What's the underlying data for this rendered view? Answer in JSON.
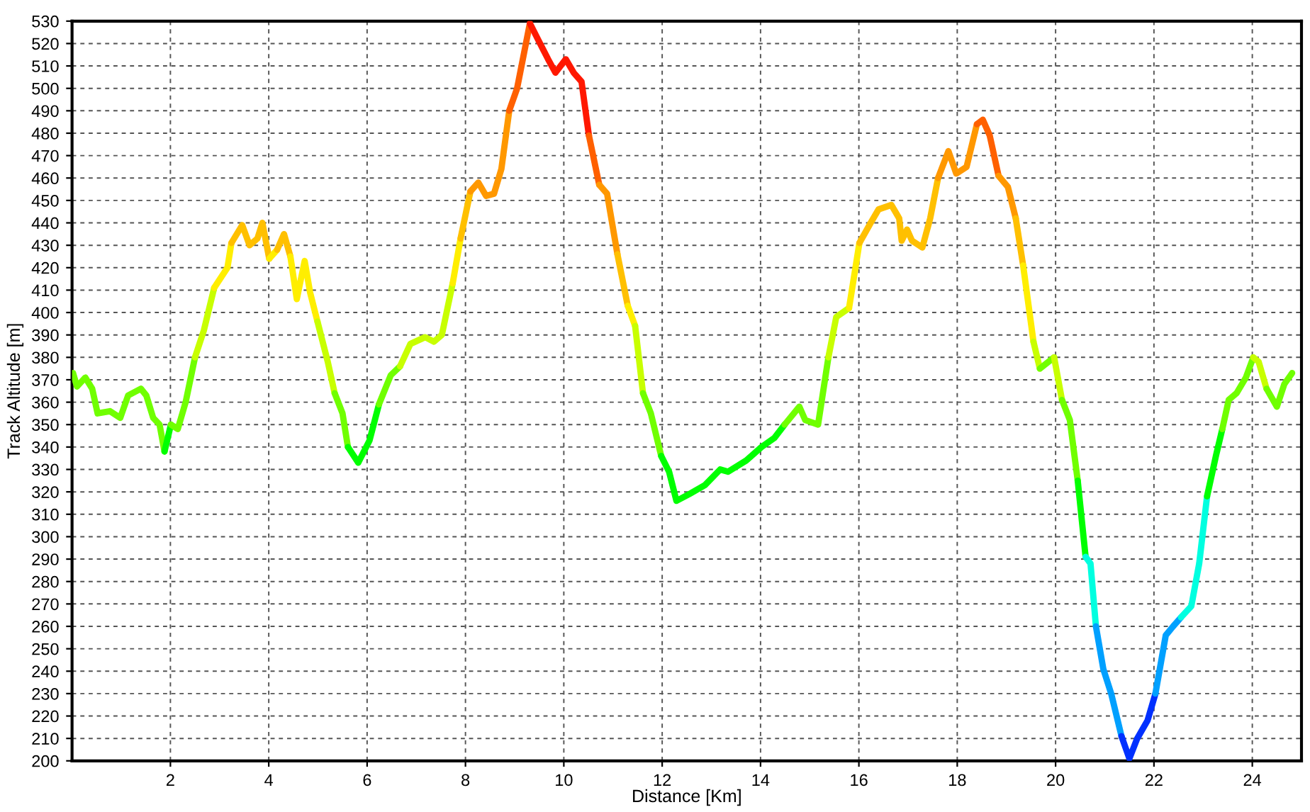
{
  "chart_data": {
    "type": "line",
    "xlabel": "Distance [Km]",
    "ylabel": "Track Altitude [m]",
    "xlim": [
      0,
      25
    ],
    "ylim": [
      200,
      530
    ],
    "xticks": [
      2,
      4,
      6,
      8,
      10,
      12,
      14,
      16,
      18,
      20,
      22,
      24
    ],
    "yticks": [
      200,
      210,
      220,
      230,
      240,
      250,
      260,
      270,
      280,
      290,
      300,
      310,
      320,
      330,
      340,
      350,
      360,
      370,
      380,
      390,
      400,
      410,
      420,
      430,
      440,
      450,
      460,
      470,
      480,
      490,
      500,
      510,
      520,
      530
    ],
    "grid": true,
    "line_style": "solid",
    "marker": "none",
    "series": [
      {
        "color": "#70ff00",
        "x": [
          0.02,
          0.1,
          0.27,
          0.41,
          0.52,
          0.77,
          0.98,
          1.14,
          1.4,
          1.51,
          1.65,
          1.78,
          1.88
        ],
        "values": [
          373,
          367,
          371,
          366,
          355,
          356,
          353,
          363,
          366,
          363,
          353,
          350,
          338
        ]
      },
      {
        "color": "#00ff00",
        "x": [
          1.88,
          2.01
        ],
        "values": [
          338,
          350
        ]
      },
      {
        "color": "#70ff00",
        "x": [
          2.01,
          2.15,
          2.31,
          2.5
        ],
        "values": [
          350,
          348,
          360,
          380
        ]
      },
      {
        "color": "#c8ff00",
        "x": [
          2.5,
          2.68,
          2.89
        ],
        "values": [
          380,
          392,
          411
        ]
      },
      {
        "color": "#ffee00",
        "x": [
          2.89,
          3.16,
          3.24
        ],
        "values": [
          411,
          420,
          431
        ]
      },
      {
        "color": "#ffc000",
        "x": [
          3.24,
          3.46,
          3.61,
          3.77,
          3.87,
          4.01
        ],
        "values": [
          431,
          439,
          430,
          433,
          440,
          424
        ]
      },
      {
        "color": "#ffee00",
        "x": [
          4.01,
          4.17
        ],
        "values": [
          424,
          428
        ]
      },
      {
        "color": "#ffc000",
        "x": [
          4.17,
          4.31,
          4.44
        ],
        "values": [
          428,
          435,
          425
        ]
      },
      {
        "color": "#ffee00",
        "x": [
          4.44,
          4.57,
          4.73,
          4.84,
          4.99
        ],
        "values": [
          425,
          406,
          423,
          409,
          396
        ]
      },
      {
        "color": "#c8ff00",
        "x": [
          4.99,
          5.2,
          5.34
        ],
        "values": [
          396,
          378,
          364
        ]
      },
      {
        "color": "#70ff00",
        "x": [
          5.34,
          5.5,
          5.61
        ],
        "values": [
          364,
          355,
          340
        ]
      },
      {
        "color": "#00ff00",
        "x": [
          5.61,
          5.82,
          6.05,
          6.24
        ],
        "values": [
          340,
          333,
          343,
          359
        ]
      },
      {
        "color": "#70ff00",
        "x": [
          6.24,
          6.48,
          6.67
        ],
        "values": [
          359,
          372,
          376
        ]
      },
      {
        "color": "#c8ff00",
        "x": [
          6.67,
          6.88,
          7.18,
          7.36,
          7.52,
          7.74
        ],
        "values": [
          376,
          386,
          389,
          387,
          390,
          413
        ]
      },
      {
        "color": "#ffee00",
        "x": [
          7.74,
          7.9
        ],
        "values": [
          413,
          433
        ]
      },
      {
        "color": "#ffc000",
        "x": [
          7.9,
          8.1
        ],
        "values": [
          433,
          454
        ]
      },
      {
        "color": "#ff9800",
        "x": [
          8.1,
          8.26,
          8.42,
          8.58,
          8.73,
          8.89
        ],
        "values": [
          454,
          458,
          452,
          453,
          464,
          490
        ]
      },
      {
        "color": "#ff6000",
        "x": [
          8.89,
          9.05,
          9.31
        ],
        "values": [
          490,
          500,
          529
        ]
      },
      {
        "color": "#ff1800",
        "x": [
          9.31,
          9.47,
          9.68,
          9.83,
          10.04,
          10.2,
          10.36,
          10.51
        ],
        "values": [
          529,
          522,
          513,
          507,
          513,
          507,
          503,
          479
        ]
      },
      {
        "color": "#ff6000",
        "x": [
          10.51,
          10.72
        ],
        "values": [
          479,
          457
        ]
      },
      {
        "color": "#ff9800",
        "x": [
          10.72,
          10.88,
          11.09
        ],
        "values": [
          457,
          453,
          426
        ]
      },
      {
        "color": "#ffc000",
        "x": [
          11.09,
          11.3
        ],
        "values": [
          426,
          403
        ]
      },
      {
        "color": "#ffee00",
        "x": [
          11.3,
          11.45
        ],
        "values": [
          403,
          394
        ]
      },
      {
        "color": "#c8ff00",
        "x": [
          11.45,
          11.61
        ],
        "values": [
          394,
          364
        ]
      },
      {
        "color": "#70ff00",
        "x": [
          11.61,
          11.77,
          11.98
        ],
        "values": [
          364,
          355,
          336
        ]
      },
      {
        "color": "#00ff00",
        "x": [
          11.98,
          12.14,
          12.29,
          12.55,
          12.87,
          13.18,
          13.34,
          13.71,
          14.02,
          14.28,
          14.49
        ],
        "values": [
          336,
          329,
          316,
          319,
          323,
          330,
          329,
          334,
          340,
          344,
          350
        ]
      },
      {
        "color": "#70ff00",
        "x": [
          14.49,
          14.79,
          14.91,
          15.17,
          15.38
        ],
        "values": [
          350,
          358,
          352,
          350,
          380
        ]
      },
      {
        "color": "#c8ff00",
        "x": [
          15.38,
          15.54,
          15.8
        ],
        "values": [
          380,
          398,
          402
        ]
      },
      {
        "color": "#ffee00",
        "x": [
          15.8,
          16.01
        ],
        "values": [
          402,
          431
        ]
      },
      {
        "color": "#ffc000",
        "x": [
          16.01,
          16.24,
          16.4,
          16.66,
          16.82,
          16.87,
          16.98,
          17.08,
          17.29,
          17.45,
          17.61
        ],
        "values": [
          431,
          440,
          446,
          448,
          442,
          432,
          437,
          432,
          429,
          442,
          460
        ]
      },
      {
        "color": "#ff9800",
        "x": [
          17.61,
          17.82,
          17.98,
          18.19,
          18.4
        ],
        "values": [
          460,
          472,
          462,
          465,
          484
        ]
      },
      {
        "color": "#ff6000",
        "x": [
          18.4,
          18.52,
          18.66,
          18.84
        ],
        "values": [
          484,
          486,
          479,
          461
        ]
      },
      {
        "color": "#ff9800",
        "x": [
          18.84,
          19.03,
          19.19
        ],
        "values": [
          461,
          456,
          442
        ]
      },
      {
        "color": "#ffc000",
        "x": [
          19.19,
          19.34
        ],
        "values": [
          442,
          421
        ]
      },
      {
        "color": "#ffee00",
        "x": [
          19.34,
          19.55
        ],
        "values": [
          421,
          387
        ]
      },
      {
        "color": "#c8ff00",
        "x": [
          19.55,
          19.68
        ],
        "values": [
          387,
          375
        ]
      },
      {
        "color": "#70ff00",
        "x": [
          19.68,
          19.97
        ],
        "values": [
          375,
          380
        ]
      },
      {
        "color": "#c8ff00",
        "x": [
          19.97,
          20.13
        ],
        "values": [
          380,
          361
        ]
      },
      {
        "color": "#70ff00",
        "x": [
          20.13,
          20.29,
          20.45
        ],
        "values": [
          361,
          352,
          325
        ]
      },
      {
        "color": "#00ff00",
        "x": [
          20.45,
          20.61
        ],
        "values": [
          325,
          291
        ]
      },
      {
        "color": "#00ffe0",
        "x": [
          20.61,
          20.71,
          20.82
        ],
        "values": [
          291,
          288,
          260
        ]
      },
      {
        "color": "#00a0ff",
        "x": [
          20.82,
          20.97,
          21.13,
          21.34
        ],
        "values": [
          260,
          241,
          230,
          211
        ]
      },
      {
        "color": "#0030ff",
        "x": [
          21.34,
          21.5,
          21.66,
          21.87,
          22.03
        ],
        "values": [
          211,
          201,
          210,
          218,
          230
        ]
      },
      {
        "color": "#00a0ff",
        "x": [
          22.03,
          22.24,
          22.39,
          22.55
        ],
        "values": [
          230,
          256,
          260,
          264
        ]
      },
      {
        "color": "#00ffe0",
        "x": [
          22.55,
          22.76,
          22.92,
          23.08
        ],
        "values": [
          264,
          269,
          288,
          318
        ]
      },
      {
        "color": "#00ff00",
        "x": [
          23.08,
          23.26,
          23.39
        ],
        "values": [
          318,
          336,
          348
        ]
      },
      {
        "color": "#70ff00",
        "x": [
          23.39,
          23.52,
          23.68,
          23.87,
          24.02
        ],
        "values": [
          348,
          361,
          364,
          371,
          380
        ]
      },
      {
        "color": "#c8ff00",
        "x": [
          24.02,
          24.13,
          24.29
        ],
        "values": [
          380,
          378,
          366
        ]
      },
      {
        "color": "#70ff00",
        "x": [
          24.29,
          24.5,
          24.65,
          24.81
        ],
        "values": [
          366,
          358,
          368,
          373
        ]
      }
    ]
  }
}
